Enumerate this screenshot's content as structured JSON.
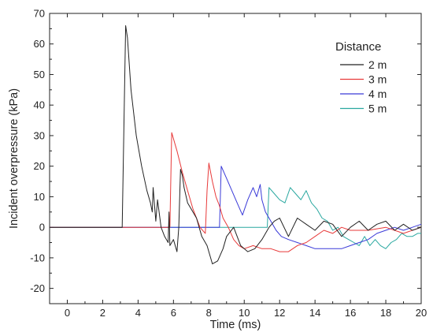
{
  "chart_data": {
    "type": "line",
    "xlabel": "Time (ms)",
    "ylabel": "Incident overpressure (kPa)",
    "xlim": [
      -1,
      20
    ],
    "ylim": [
      -25,
      70
    ],
    "x_ticks": [
      0,
      2,
      4,
      6,
      8,
      10,
      12,
      14,
      16,
      18,
      20
    ],
    "y_ticks": [
      -20,
      -10,
      0,
      10,
      20,
      30,
      40,
      50,
      60,
      70
    ],
    "grid": false,
    "legend_title": "Distance",
    "legend_position": "top-right",
    "series": [
      {
        "name": "2 m",
        "color": "#222222",
        "x": [
          -1,
          3.1,
          3.2,
          3.3,
          3.4,
          3.6,
          3.9,
          4.2,
          4.5,
          4.7,
          4.8,
          4.85,
          5.0,
          5.1,
          5.3,
          5.5,
          5.7,
          5.75,
          5.8,
          6.0,
          6.2,
          6.3,
          6.4,
          6.5,
          6.6,
          6.8,
          7.0,
          7.3,
          7.6,
          7.9,
          8.2,
          8.5,
          8.8,
          9.0,
          9.4,
          9.8,
          10.2,
          10.6,
          11.0,
          11.4,
          11.7,
          12.0,
          12.5,
          13.0,
          13.5,
          14.0,
          14.5,
          15.0,
          15.5,
          16.0,
          16.5,
          17.0,
          17.5,
          18.0,
          18.5,
          19.0,
          19.5,
          20
        ],
        "y": [
          0,
          0,
          33,
          66,
          62,
          45,
          30,
          20,
          12,
          8,
          5,
          13,
          2,
          9,
          0,
          -3,
          -5,
          5,
          -6,
          -4,
          -8,
          0,
          19,
          17,
          13,
          8,
          6,
          3,
          -3,
          -6,
          -12,
          -11,
          -7,
          -3,
          0,
          -6,
          -8,
          -7,
          -4,
          0,
          2,
          3,
          -3,
          3,
          1,
          -1,
          2,
          1,
          -3,
          0,
          2,
          -1,
          1,
          2,
          -1,
          1,
          -1,
          0
        ]
      },
      {
        "name": "3 m",
        "color": "#e83a3a",
        "x": [
          -1,
          5.8,
          5.9,
          6.2,
          6.5,
          6.8,
          7.1,
          7.3,
          7.5,
          7.8,
          7.9,
          8.0,
          8.2,
          8.4,
          8.6,
          8.8,
          9.1,
          9.4,
          9.7,
          10.0,
          10.5,
          11.0,
          11.5,
          12.0,
          12.5,
          13.0,
          13.5,
          14.0,
          14.5,
          15.0,
          15.5,
          16.0,
          17.0,
          18.0,
          19.0,
          20
        ],
        "y": [
          0,
          0,
          31,
          25,
          18,
          12,
          6,
          3,
          0,
          -2,
          12,
          21,
          15,
          10,
          7,
          3,
          0,
          -4,
          -6,
          -7,
          -6,
          -7,
          -7,
          -8,
          -8,
          -6,
          -5,
          -3,
          -1,
          -2,
          0,
          -1,
          -1,
          0,
          -2,
          0
        ]
      },
      {
        "name": "4 m",
        "color": "#3a3ad8",
        "x": [
          -1,
          8.6,
          8.7,
          9.0,
          9.3,
          9.6,
          9.9,
          10.2,
          10.5,
          10.7,
          10.9,
          11.0,
          11.2,
          11.5,
          11.8,
          12.1,
          12.5,
          13.0,
          13.5,
          14.0,
          14.5,
          15.0,
          15.5,
          16.0,
          16.5,
          17.0,
          17.5,
          18.0,
          18.5,
          19.0,
          19.5,
          20
        ],
        "y": [
          0,
          0,
          20,
          16,
          12,
          8,
          4,
          9,
          13,
          10,
          14,
          9,
          5,
          2,
          -1,
          -3,
          -4,
          -5,
          -6,
          -7,
          -7,
          -7,
          -7,
          -6,
          -5,
          -4,
          -2,
          -1,
          0,
          -1,
          0,
          1
        ]
      },
      {
        "name": "5 m",
        "color": "#2aa8a0",
        "x": [
          -1,
          11.3,
          11.4,
          11.7,
          12.0,
          12.3,
          12.6,
          12.9,
          13.2,
          13.5,
          13.8,
          14.1,
          14.4,
          14.7,
          15.0,
          15.3,
          15.6,
          15.9,
          16.2,
          16.5,
          16.8,
          17.1,
          17.4,
          17.7,
          18.0,
          18.3,
          18.6,
          18.9,
          19.2,
          19.5,
          19.8,
          20
        ],
        "y": [
          0,
          0,
          13,
          11,
          9,
          8,
          13,
          11,
          9,
          12,
          8,
          6,
          3,
          2,
          -1,
          0,
          -3,
          -4,
          -5,
          -6,
          -3,
          -6,
          -4,
          -6,
          -7,
          -5,
          -4,
          -2,
          -3,
          -3,
          -2,
          -2
        ]
      }
    ]
  }
}
